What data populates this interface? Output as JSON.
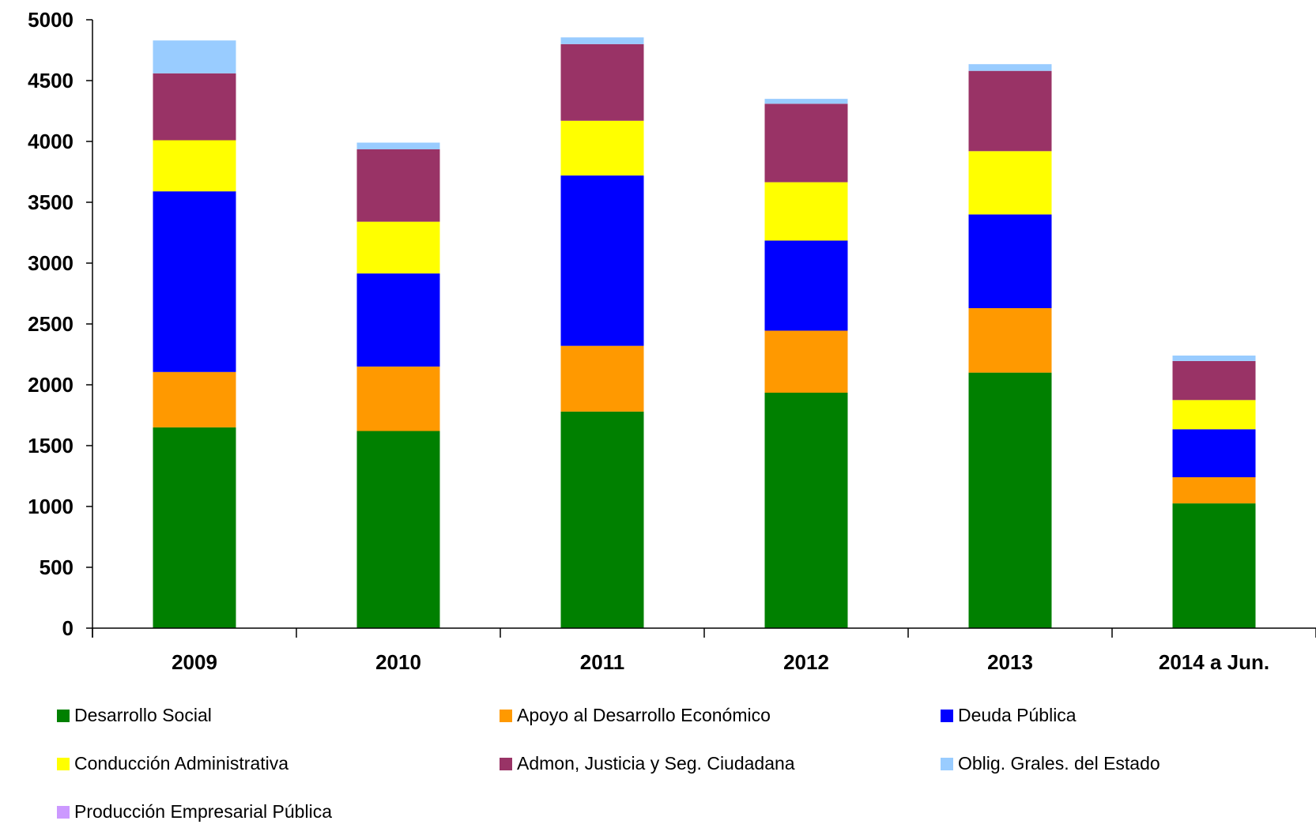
{
  "chart_data": {
    "type": "bar",
    "stacked": true,
    "title": "",
    "xlabel": "",
    "ylabel": "",
    "ylim": [
      0,
      5000
    ],
    "yticks": [
      0,
      500,
      1000,
      1500,
      2000,
      2500,
      3000,
      3500,
      4000,
      4500,
      5000
    ],
    "categories": [
      "2009",
      "2010",
      "2011",
      "2012",
      "2013",
      "2014 a Jun."
    ],
    "legend_position": "bottom",
    "grid": false,
    "series": [
      {
        "name": "Desarrollo Social",
        "color": "#008000",
        "values": [
          1650,
          1620,
          1780,
          1935,
          2100,
          1025
        ]
      },
      {
        "name": "Apoyo al Desarrollo Económico",
        "color": "#FF9900",
        "values": [
          455,
          530,
          540,
          510,
          530,
          215
        ]
      },
      {
        "name": "Deuda Pública",
        "color": "#0000FF",
        "values": [
          1485,
          765,
          1400,
          740,
          770,
          395
        ]
      },
      {
        "name": "Conducción Administrativa",
        "color": "#FFFF00",
        "values": [
          420,
          425,
          450,
          480,
          520,
          240
        ]
      },
      {
        "name": "Admon, Justicia y Seg. Ciudadana",
        "color": "#993366",
        "values": [
          550,
          595,
          630,
          645,
          660,
          320
        ]
      },
      {
        "name": "Oblig. Grales. del Estado",
        "color": "#99CCFF",
        "values": [
          270,
          55,
          55,
          40,
          55,
          45
        ]
      },
      {
        "name": "Producción Empresarial Pública",
        "color": "#CC99FF",
        "values": [
          0,
          0,
          0,
          0,
          0,
          0
        ]
      }
    ]
  }
}
